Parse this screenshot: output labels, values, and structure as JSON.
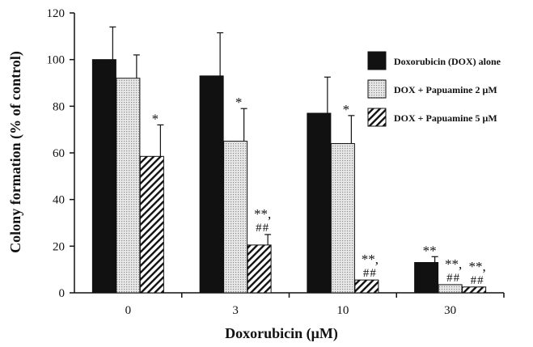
{
  "chart_data": {
    "type": "bar",
    "title": "",
    "xlabel": "Doxorubicin (μM)",
    "ylabel": "Colony formation (% of control)",
    "ylim": [
      0,
      120
    ],
    "yticks": [
      0,
      20,
      40,
      60,
      80,
      100,
      120
    ],
    "categories": [
      "0",
      "3",
      "10",
      "30"
    ],
    "legend_position": "right",
    "grid": false,
    "series": [
      {
        "name": "Doxorubicin (DOX) alone",
        "pattern": "solid",
        "color": "#111111",
        "values": [
          100,
          93,
          77,
          13
        ],
        "errors": [
          14,
          18.5,
          15.5,
          2.5
        ],
        "annotations": [
          [],
          [],
          [],
          [
            "**"
          ]
        ]
      },
      {
        "name": "DOX + Papuamine 2 μM",
        "pattern": "dotted",
        "color": "#d9d9d9",
        "values": [
          92,
          65,
          64,
          3.5
        ],
        "errors": [
          10,
          14,
          12,
          0
        ],
        "annotations": [
          [],
          [
            "*"
          ],
          [
            "*"
          ],
          [
            "**,",
            "##"
          ]
        ]
      },
      {
        "name": "DOX + Papuamine 5 μM",
        "pattern": "hatched",
        "color": "#111111",
        "values": [
          58.5,
          20.5,
          5.5,
          2.5
        ],
        "errors": [
          13.5,
          4.5,
          0,
          0
        ],
        "annotations": [
          [
            "*"
          ],
          [
            "**,",
            "##"
          ],
          [
            "**,",
            "##"
          ],
          [
            "**,",
            "##"
          ]
        ]
      }
    ]
  }
}
